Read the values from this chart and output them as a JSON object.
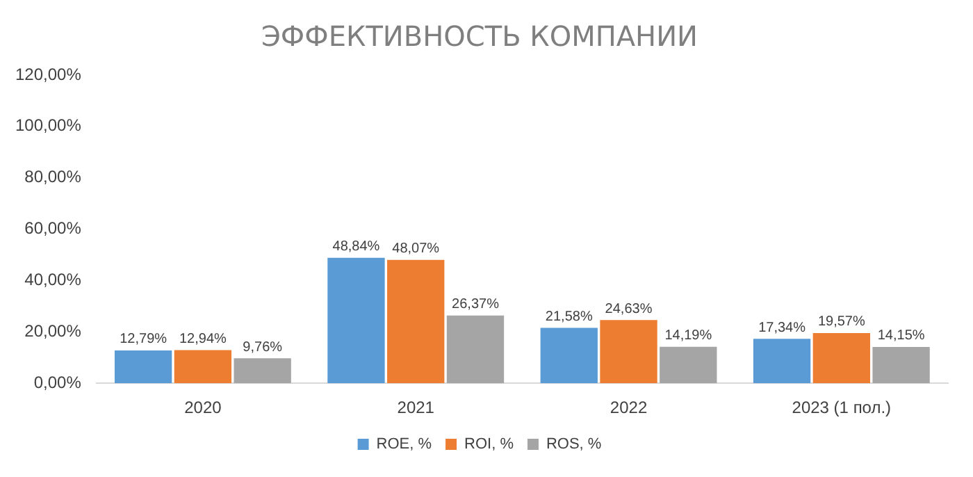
{
  "chart_data": {
    "type": "bar",
    "title": "ЭФФЕКТИВНОСТЬ КОМПАНИИ",
    "categories": [
      "2020",
      "2021",
      "2022",
      "2023 (1 пол.)"
    ],
    "series": [
      {
        "name": "ROE, %",
        "color": "#5b9bd5",
        "values": [
          12.79,
          48.84,
          21.58,
          17.34
        ],
        "value_labels": [
          "12,79%",
          "48,84%",
          "21,58%",
          "17,34%"
        ]
      },
      {
        "name": "ROI, %",
        "color": "#ed7d31",
        "values": [
          12.94,
          48.07,
          24.63,
          19.57
        ],
        "value_labels": [
          "12,94%",
          "48,07%",
          "24,63%",
          "19,57%"
        ]
      },
      {
        "name": "ROS, %",
        "color": "#a5a5a5",
        "values": [
          9.76,
          26.37,
          14.19,
          14.15
        ],
        "value_labels": [
          "9,76%",
          "26,37%",
          "14,19%",
          "14,15%"
        ]
      }
    ],
    "ylim": [
      0,
      120
    ],
    "yticks": [
      {
        "value": 0,
        "label": "0,00%"
      },
      {
        "value": 20,
        "label": "20,00%"
      },
      {
        "value": 40,
        "label": "40,00%"
      },
      {
        "value": 60,
        "label": "60,00%"
      },
      {
        "value": 80,
        "label": "80,00%"
      },
      {
        "value": 100,
        "label": "100,00%"
      },
      {
        "value": 120,
        "label": "120,00%"
      }
    ],
    "grid": false,
    "legend": "bottom"
  }
}
